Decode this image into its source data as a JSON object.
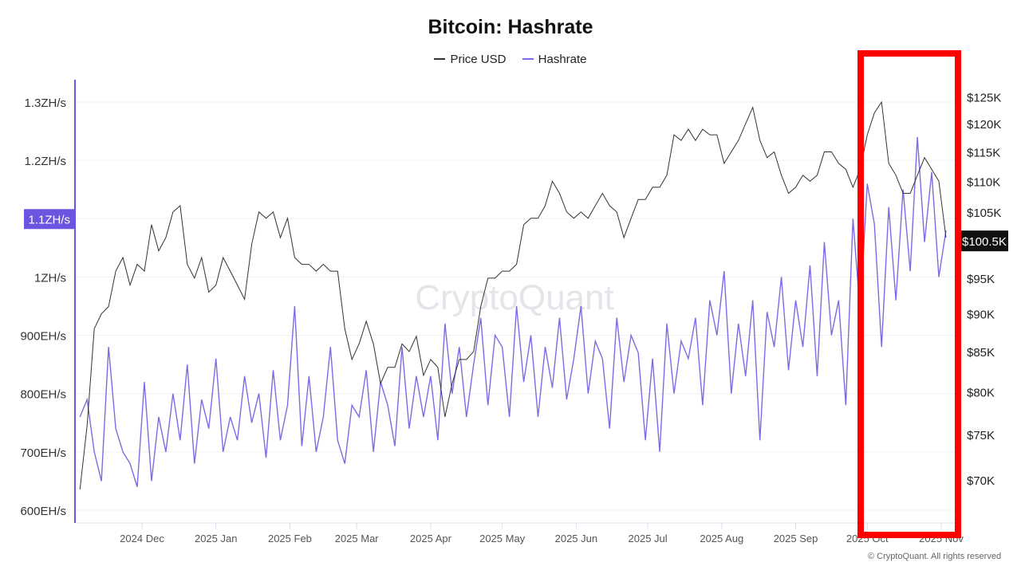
{
  "chart_data": {
    "type": "line",
    "title": "Bitcoin: Hashrate",
    "legend": [
      "Price USD",
      "Hashrate"
    ],
    "legend_placement": "top",
    "colors": {
      "price": "#333333",
      "hashrate": "#7b6ce6",
      "highlight": "#ff0000",
      "left_axis": "#6a54e0"
    },
    "grid": true,
    "left_axis": {
      "ticks": [
        "600EH/s",
        "700EH/s",
        "800EH/s",
        "900EH/s",
        "1ZH/s",
        "1.1ZH/s",
        "1.2ZH/s",
        "1.3ZH/s"
      ],
      "tick_values": [
        600,
        700,
        800,
        900,
        1000,
        1100,
        1200,
        1300
      ],
      "unit": "EH/s",
      "ylim": [
        580,
        1340
      ],
      "highlighted_label": "1.1ZH/s"
    },
    "right_axis": {
      "scale": "log",
      "ticks": [
        "$70K",
        "$75K",
        "$80K",
        "$85K",
        "$90K",
        "$95K",
        "$105K",
        "$110K",
        "$115K",
        "$120K",
        "$125K"
      ],
      "tick_values": [
        70,
        75,
        80,
        85,
        90,
        95,
        105,
        110,
        115,
        120,
        125
      ],
      "current_label": "$100.5K",
      "current_value": 100.5
    },
    "x_axis": {
      "ticks": [
        "2024 Dec",
        "2025 Jan",
        "2025 Feb",
        "2025 Mar",
        "2025 Apr",
        "2025 May",
        "2025 Jun",
        "2025 Jul",
        "2025 Aug",
        "2025 Sep",
        "2025 Oct",
        "2025 Nov"
      ],
      "tick_dates": [
        "2024-12-01",
        "2025-01-01",
        "2025-02-01",
        "2025-03-01",
        "2025-04-01",
        "2025-05-01",
        "2025-06-01",
        "2025-07-01",
        "2025-08-01",
        "2025-09-01",
        "2025-10-01",
        "2025-11-01"
      ]
    },
    "dates": [
      "2024-11-05",
      "2024-11-08",
      "2024-11-11",
      "2024-11-14",
      "2024-11-17",
      "2024-11-20",
      "2024-11-23",
      "2024-11-26",
      "2024-11-29",
      "2024-12-02",
      "2024-12-05",
      "2024-12-08",
      "2024-12-11",
      "2024-12-14",
      "2024-12-17",
      "2024-12-20",
      "2024-12-23",
      "2024-12-26",
      "2024-12-29",
      "2025-01-01",
      "2025-01-04",
      "2025-01-07",
      "2025-01-10",
      "2025-01-13",
      "2025-01-16",
      "2025-01-19",
      "2025-01-22",
      "2025-01-25",
      "2025-01-28",
      "2025-01-31",
      "2025-02-03",
      "2025-02-06",
      "2025-02-09",
      "2025-02-12",
      "2025-02-15",
      "2025-02-18",
      "2025-02-21",
      "2025-02-24",
      "2025-02-27",
      "2025-03-02",
      "2025-03-05",
      "2025-03-08",
      "2025-03-11",
      "2025-03-14",
      "2025-03-17",
      "2025-03-20",
      "2025-03-23",
      "2025-03-26",
      "2025-03-29",
      "2025-04-01",
      "2025-04-04",
      "2025-04-07",
      "2025-04-10",
      "2025-04-13",
      "2025-04-16",
      "2025-04-19",
      "2025-04-22",
      "2025-04-25",
      "2025-04-28",
      "2025-05-01",
      "2025-05-04",
      "2025-05-07",
      "2025-05-10",
      "2025-05-13",
      "2025-05-16",
      "2025-05-19",
      "2025-05-22",
      "2025-05-25",
      "2025-05-28",
      "2025-05-31",
      "2025-06-03",
      "2025-06-06",
      "2025-06-09",
      "2025-06-12",
      "2025-06-15",
      "2025-06-18",
      "2025-06-21",
      "2025-06-24",
      "2025-06-27",
      "2025-06-30",
      "2025-07-03",
      "2025-07-06",
      "2025-07-09",
      "2025-07-12",
      "2025-07-15",
      "2025-07-18",
      "2025-07-21",
      "2025-07-24",
      "2025-07-27",
      "2025-07-30",
      "2025-08-02",
      "2025-08-05",
      "2025-08-08",
      "2025-08-11",
      "2025-08-14",
      "2025-08-17",
      "2025-08-20",
      "2025-08-23",
      "2025-08-26",
      "2025-08-29",
      "2025-09-01",
      "2025-09-04",
      "2025-09-07",
      "2025-09-10",
      "2025-09-13",
      "2025-09-16",
      "2025-09-19",
      "2025-09-22",
      "2025-09-25",
      "2025-09-28",
      "2025-10-01",
      "2025-10-04",
      "2025-10-07",
      "2025-10-10",
      "2025-10-13",
      "2025-10-16",
      "2025-10-19",
      "2025-10-22",
      "2025-10-25",
      "2025-10-28",
      "2025-10-31",
      "2025-11-03"
    ],
    "series": [
      {
        "name": "Price USD",
        "axis": "right",
        "unit": "K USD",
        "values": [
          69,
          76,
          88,
          90,
          91,
          96,
          98,
          94,
          97,
          96,
          103,
          99,
          101,
          105,
          106,
          97,
          95,
          98,
          93,
          94,
          98,
          96,
          94,
          92,
          100,
          105,
          104,
          105,
          101,
          104,
          98,
          97,
          97,
          96,
          97,
          96,
          96,
          88,
          84,
          86,
          89,
          86,
          81,
          83,
          83,
          86,
          85,
          87,
          82,
          84,
          83,
          77,
          81,
          84,
          84,
          85,
          91,
          95,
          95,
          96,
          96,
          97,
          103,
          104,
          104,
          106,
          110,
          108,
          105,
          104,
          105,
          104,
          106,
          108,
          106,
          105,
          101,
          104,
          107,
          107,
          109,
          109,
          111,
          118,
          117,
          119,
          117,
          119,
          118,
          118,
          113,
          115,
          117,
          120,
          123,
          117,
          114,
          115,
          111,
          108,
          109,
          111,
          110,
          111,
          115,
          115,
          113,
          112,
          109,
          112,
          118,
          122,
          124,
          113,
          111,
          108,
          108,
          111,
          114,
          112,
          110,
          101
        ]
      },
      {
        "name": "Hashrate",
        "axis": "left",
        "unit": "EH/s",
        "values": [
          760,
          790,
          700,
          650,
          880,
          740,
          700,
          680,
          640,
          820,
          650,
          760,
          700,
          800,
          720,
          850,
          680,
          790,
          740,
          860,
          700,
          760,
          720,
          830,
          750,
          800,
          690,
          840,
          720,
          780,
          950,
          710,
          830,
          700,
          760,
          880,
          720,
          680,
          780,
          760,
          840,
          700,
          820,
          780,
          710,
          880,
          740,
          830,
          760,
          830,
          720,
          920,
          800,
          880,
          760,
          850,
          930,
          780,
          900,
          880,
          760,
          950,
          820,
          900,
          760,
          880,
          810,
          930,
          790,
          860,
          950,
          800,
          890,
          860,
          740,
          930,
          820,
          900,
          870,
          720,
          860,
          700,
          920,
          800,
          890,
          860,
          930,
          780,
          960,
          900,
          1010,
          800,
          920,
          830,
          960,
          720,
          940,
          880,
          1000,
          840,
          960,
          880,
          1020,
          830,
          1060,
          900,
          960,
          780,
          1100,
          940,
          1160,
          1090,
          880,
          1120,
          960,
          1150,
          1010,
          1240,
          1060,
          1180,
          1000,
          1080
        ]
      }
    ],
    "highlight_region": {
      "from": "2025-10-01",
      "to": "2025-11-04"
    },
    "watermark": "CryptoQuant",
    "copyright": "© CryptoQuant. All rights reserved"
  }
}
